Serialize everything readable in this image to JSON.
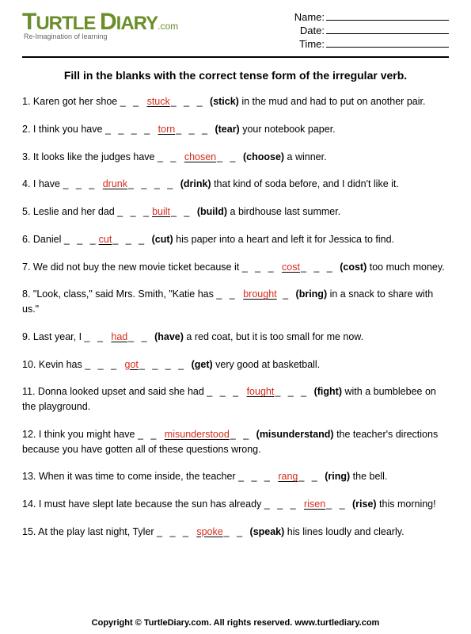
{
  "logo": {
    "brand_pre": "T",
    "brand_mid1": "URTLE",
    "brand_mid2": "D",
    "brand_mid3": "IARY",
    "dotcom": ".com",
    "tagline": "Re-Imagination of learning"
  },
  "meta": {
    "name_label": "Name:",
    "date_label": "Date:",
    "time_label": "Time:"
  },
  "instruction": "Fill in the blanks with the correct tense form of the irregular verb.",
  "q": [
    {
      "n": "1.",
      "pre": "Karen got her shoe ",
      "bL": "_ _ ",
      "ans": "stuck",
      "bR": "_ _ _ ",
      "verb": "(stick)",
      "post": " in the mud and had to put on another pair."
    },
    {
      "n": "2.",
      "pre": "I think you have ",
      "bL": "_ _ _ _ ",
      "ans": "torn",
      "bR": "_ _ _ ",
      "verb": "(tear)",
      "post": " your notebook paper."
    },
    {
      "n": "3.",
      "pre": "It looks like the judges have ",
      "bL": "_ _ ",
      "ans": "chosen",
      "bR": "_ _ ",
      "verb": "(choose)",
      "post": " a winner."
    },
    {
      "n": "4.",
      "pre": "I have ",
      "bL": "_ _ _ ",
      "ans": "drunk",
      "bR": "_ _ _ _ ",
      "verb": "(drink)",
      "post": " that kind of soda before, and I didn't like it."
    },
    {
      "n": "5.",
      "pre": "Leslie and her dad ",
      "bL": "_ _ _",
      "ans": "built",
      "bR": "_ _ ",
      "verb": "(build)",
      "post": " a birdhouse last summer."
    },
    {
      "n": "6.",
      "pre": "Daniel ",
      "bL": "_ _ _",
      "ans": "cut",
      "bR": "_ _ _ ",
      "verb": "(cut)",
      "post": " his paper into a heart and left it for Jessica to find."
    },
    {
      "n": "7.",
      "pre": "We did not buy the new movie ticket because it ",
      "bL": "_ _ _ ",
      "ans": "cost",
      "bR": "_ _ _ ",
      "verb": "(cost)",
      "post": " too much money."
    },
    {
      "n": "8.",
      "pre": "\"Look, class,\" said Mrs. Smith, \"Katie has ",
      "bL": "_ _ ",
      "ans": "brought",
      "bR": " _ ",
      "verb": "(bring)",
      "post": " in a snack to share with us.\""
    },
    {
      "n": "9.",
      "pre": "Last year, I ",
      "bL": "_ _ ",
      "ans": "had",
      "bR": "_ _ ",
      "verb": "(have)",
      "post": " a red coat, but it is too small for me now."
    },
    {
      "n": "10.",
      "pre": "Kevin has ",
      "bL": "_ _ _ ",
      "ans": "got",
      "bR": "_ _ _ _ ",
      "verb": "(get)",
      "post": " very good at basketball."
    },
    {
      "n": "11.",
      "pre": "Donna looked upset and said she had ",
      "bL": "_ _ _ ",
      "ans": "fought",
      "bR": "_ _ _ ",
      "verb": "(fight)",
      "post": " with a bumblebee on the playground."
    },
    {
      "n": "12.",
      "pre": "I think you might have ",
      "bL": "_ _ ",
      "ans": "misunderstood",
      "bR": "_ _ ",
      "verb": "(misunderstand)",
      "post": " the teacher's directions because you have gotten all of these questions wrong."
    },
    {
      "n": "13.",
      "pre": "When it was time to come inside, the teacher ",
      "bL": "_ _ _ ",
      "ans": "rang",
      "bR": "_ _ ",
      "verb": "(ring)",
      "post": " the bell."
    },
    {
      "n": "14.",
      "pre": "I must have slept late because the sun has already ",
      "bL": "_ _ _ ",
      "ans": "risen",
      "bR": "_ _ ",
      "verb": "(rise)",
      "post": " this morning!"
    },
    {
      "n": "15.",
      "pre": "At the play last night, Tyler ",
      "bL": "_ _ _ ",
      "ans": "spoke",
      "bR": "_ _ ",
      "verb": "(speak)",
      "post": " his lines loudly and clearly."
    }
  ],
  "footer": "Copyright © TurtleDiary.com. All rights reserved.   www.turtlediary.com"
}
